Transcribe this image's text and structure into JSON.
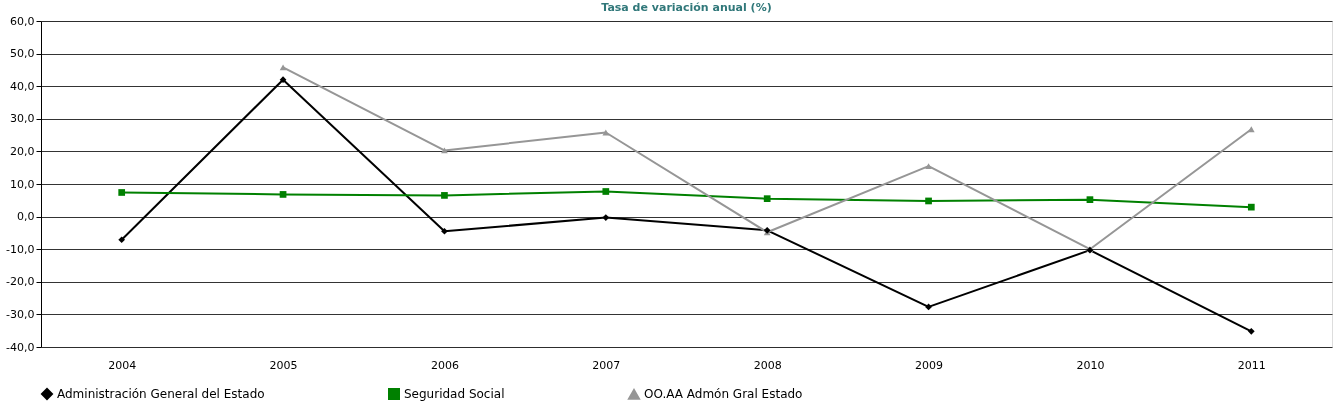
{
  "chart_data": {
    "type": "line",
    "title": "Tasa de variación anual (%)",
    "categories": [
      "2004",
      "2005",
      "2006",
      "2007",
      "2008",
      "2009",
      "2010",
      "2011"
    ],
    "series": [
      {
        "name": "Administración General del Estado",
        "color": "#000000",
        "marker": "diamond",
        "values": [
          -7.1,
          42.0,
          -4.5,
          -0.3,
          -4.2,
          -27.7,
          -10.3,
          -35.2
        ]
      },
      {
        "name": "Seguridad Social",
        "color": "#008000",
        "marker": "square",
        "values": [
          7.4,
          6.8,
          6.5,
          7.7,
          5.5,
          4.8,
          5.2,
          2.9
        ]
      },
      {
        "name": "OO.AA Admón Gral Estado",
        "color": "#969696",
        "marker": "triangle",
        "values": [
          null,
          45.8,
          20.3,
          25.8,
          -4.8,
          15.5,
          -10.0,
          26.8
        ]
      }
    ],
    "ylim": [
      -40,
      60
    ],
    "yticks": [
      {
        "value": -40,
        "label": "-40,0"
      },
      {
        "value": -30,
        "label": "-30,0"
      },
      {
        "value": -20,
        "label": "-20,0"
      },
      {
        "value": -10,
        "label": "-10,0"
      },
      {
        "value": 0,
        "label": "0,0"
      },
      {
        "value": 10,
        "label": "10,0"
      },
      {
        "value": 20,
        "label": "20,0"
      },
      {
        "value": 30,
        "label": "30,0"
      },
      {
        "value": 40,
        "label": "40,0"
      },
      {
        "value": 50,
        "label": "50,0"
      },
      {
        "value": 60,
        "label": "60,0"
      }
    ],
    "grid": "y",
    "legend": "bottom",
    "line_style": "solid"
  }
}
